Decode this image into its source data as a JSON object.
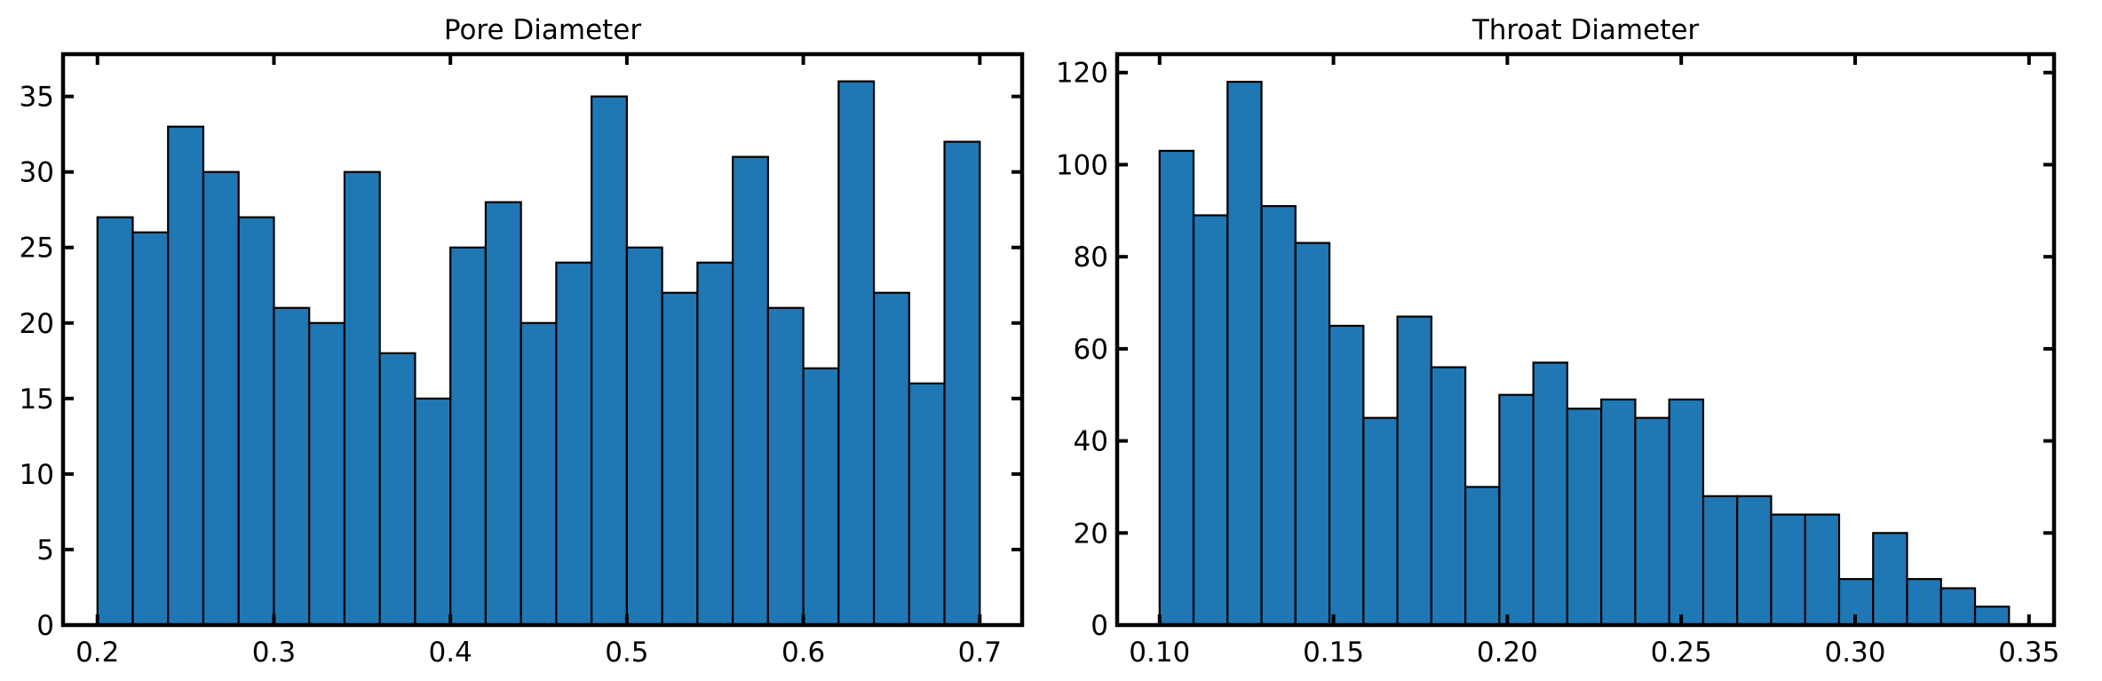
{
  "chart_data": [
    {
      "type": "bar",
      "title": "Pore Diameter",
      "xlabel": "",
      "ylabel": "",
      "xlim": [
        0.1805,
        0.724
      ],
      "ylim": [
        0,
        37.8
      ],
      "xticks": [
        0.2,
        0.3,
        0.4,
        0.5,
        0.6,
        0.7
      ],
      "xtick_labels": [
        "0.2",
        "0.3",
        "0.4",
        "0.5",
        "0.6",
        "0.7"
      ],
      "yticks": [
        0,
        5,
        10,
        15,
        20,
        25,
        30,
        35
      ],
      "ytick_labels": [
        "0",
        "5",
        "10",
        "15",
        "20",
        "25",
        "30",
        "35"
      ],
      "bin_start": 0.2,
      "bin_width": 0.02,
      "values": [
        27,
        26,
        33,
        30,
        27,
        21,
        20,
        30,
        18,
        15,
        25,
        28,
        20,
        24,
        35,
        25,
        22,
        24,
        31,
        21,
        17,
        36,
        22,
        16,
        32
      ],
      "bar_color": "#1f77b4",
      "edge_color": "#000000",
      "grid": false
    },
    {
      "type": "bar",
      "title": "Throat Diameter",
      "xlabel": "",
      "ylabel": "",
      "xlim": [
        0.0878,
        0.3572
      ],
      "ylim": [
        0,
        124
      ],
      "xticks": [
        0.1,
        0.15,
        0.2,
        0.25,
        0.3,
        0.35
      ],
      "xtick_labels": [
        "0.10",
        "0.15",
        "0.20",
        "0.25",
        "0.30",
        "0.35"
      ],
      "yticks": [
        0,
        20,
        40,
        60,
        80,
        100,
        120
      ],
      "ytick_labels": [
        "0",
        "20",
        "40",
        "60",
        "80",
        "100",
        "120"
      ],
      "bin_start": 0.1,
      "bin_width": 0.00977,
      "values": [
        103,
        89,
        118,
        91,
        83,
        65,
        45,
        67,
        56,
        30,
        50,
        57,
        47,
        49,
        45,
        49,
        28,
        28,
        24,
        24,
        10,
        20,
        10,
        8,
        4
      ],
      "bar_color": "#1f77b4",
      "edge_color": "#000000",
      "grid": false
    }
  ]
}
